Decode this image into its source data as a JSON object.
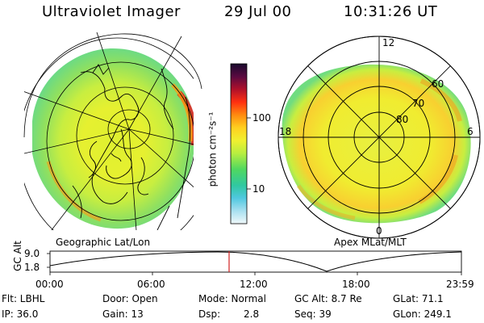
{
  "header": {
    "title": "Ultraviolet Imager",
    "date": "29 Jul 00",
    "time": "10:31:26 UT"
  },
  "colorbar": {
    "unit_label": "photon cm⁻²s⁻¹",
    "ticks": [
      "100",
      "10"
    ],
    "colors": [
      "#1a0a2e",
      "#4a0a3c",
      "#7a0a3a",
      "#b0102a",
      "#e01818",
      "#ff5010",
      "#ff9010",
      "#ffc020",
      "#ffee30",
      "#e8f030",
      "#b8f040",
      "#80e860",
      "#40d870",
      "#20c8b0",
      "#40c0e0",
      "#80d8f0",
      "#c0eaf4",
      "#eef6f8"
    ]
  },
  "panels": {
    "left_caption": "Geographic Lat/Lon",
    "right_caption": "Apex MLat/MLT",
    "right_labels": {
      "mlt_12": "12",
      "mlt_18": "18",
      "mlt_6": "6",
      "mlt_0": "0",
      "lat_60": "60",
      "lat_70": "70",
      "lat_80": "80"
    }
  },
  "timeline": {
    "axis_label": "GC Alt",
    "y_ticks": [
      "9.0",
      "1.8"
    ],
    "x_ticks": [
      "00:00",
      "06:00",
      "12:00",
      "18:00",
      "23:59"
    ],
    "marker_color": "#d02020"
  },
  "footer": {
    "flt": "Flt: LBHL",
    "ip": "IP: 36.0",
    "door": "Door: Open",
    "gain": "Gain: 13",
    "mode": "Mode: Normal",
    "dsp_label": "Dsp:",
    "dsp_value": "2.8",
    "gc_alt": "GC Alt: 8.7 Re",
    "seq": "Seq: 39",
    "glat": "GLat:  71.1",
    "glon": "GLon: 249.1"
  }
}
